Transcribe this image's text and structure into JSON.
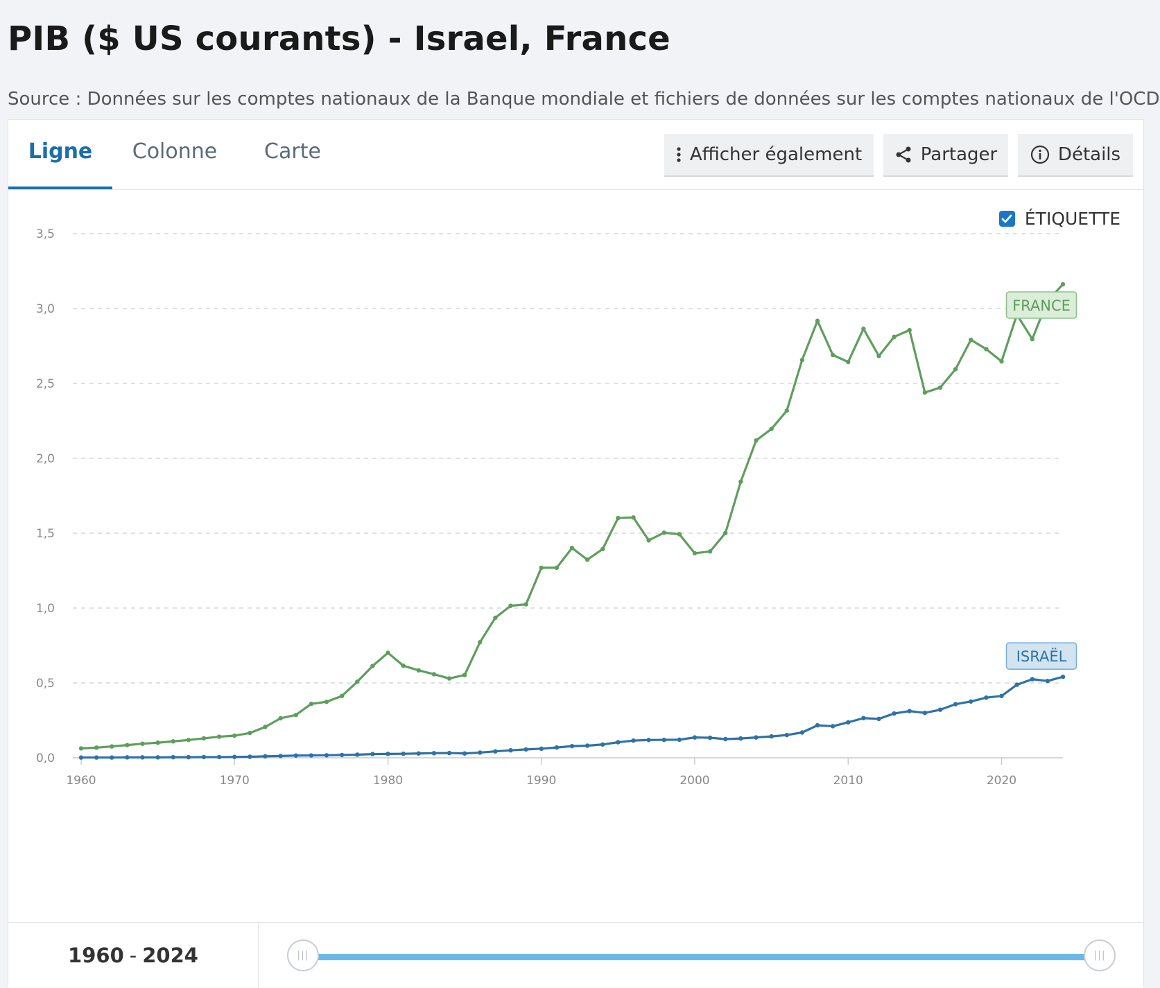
{
  "page": {
    "title": "PIB ($ US courants) - Israel, France",
    "source": "Source : Données sur les comptes nationaux de la Banque mondiale et fichiers de données sur les comptes nationaux de l'OCDE."
  },
  "tabs": [
    {
      "label": "Ligne",
      "active": true
    },
    {
      "label": "Colonne",
      "active": false
    },
    {
      "label": "Carte",
      "active": false
    }
  ],
  "toolbar": {
    "show_also_label": "Afficher également",
    "share_label": "Partager",
    "details_label": "Détails"
  },
  "legend_toggle": {
    "label": "ÉTIQUETTE",
    "checked": true
  },
  "range": {
    "start": "1960",
    "separator": "-",
    "end": "2024"
  },
  "colors": {
    "france": "#5e9e5c",
    "israel": "#2e72a6",
    "accent": "#1b6fa8",
    "slider": "#69b8e8"
  },
  "chart_data": {
    "type": "line",
    "title": "PIB ($ US courants) - Israel, France",
    "xlabel": "",
    "ylabel": "",
    "xlim": [
      1960,
      2024
    ],
    "ylim": [
      0,
      3.5
    ],
    "x_ticks": [
      "1960",
      "1970",
      "1980",
      "1990",
      "2000",
      "2010",
      "2020"
    ],
    "y_ticks": [
      "0,0",
      "0,5",
      "1,0",
      "1,5",
      "2,0",
      "2,5",
      "3,0",
      "3,5"
    ],
    "grid": true,
    "x": [
      1960,
      1961,
      1962,
      1963,
      1964,
      1965,
      1966,
      1967,
      1968,
      1969,
      1970,
      1971,
      1972,
      1973,
      1974,
      1975,
      1976,
      1977,
      1978,
      1979,
      1980,
      1981,
      1982,
      1983,
      1984,
      1985,
      1986,
      1987,
      1988,
      1989,
      1990,
      1991,
      1992,
      1993,
      1994,
      1995,
      1996,
      1997,
      1998,
      1999,
      2000,
      2001,
      2002,
      2003,
      2004,
      2005,
      2006,
      2007,
      2008,
      2009,
      2010,
      2011,
      2012,
      2013,
      2014,
      2015,
      2016,
      2017,
      2018,
      2019,
      2020,
      2021,
      2022,
      2023,
      2024
    ],
    "series": [
      {
        "name": "France",
        "label": "FRANCE",
        "values": [
          0.063,
          0.068,
          0.076,
          0.085,
          0.094,
          0.101,
          0.11,
          0.119,
          0.13,
          0.141,
          0.148,
          0.166,
          0.206,
          0.264,
          0.286,
          0.36,
          0.374,
          0.413,
          0.508,
          0.613,
          0.701,
          0.615,
          0.584,
          0.558,
          0.53,
          0.553,
          0.772,
          0.935,
          1.015,
          1.025,
          1.269,
          1.269,
          1.401,
          1.323,
          1.394,
          1.601,
          1.605,
          1.452,
          1.503,
          1.493,
          1.366,
          1.378,
          1.501,
          1.844,
          2.119,
          2.196,
          2.318,
          2.657,
          2.918,
          2.69,
          2.643,
          2.865,
          2.683,
          2.811,
          2.856,
          2.439,
          2.472,
          2.595,
          2.791,
          2.729,
          2.647,
          2.959,
          2.796,
          3.052,
          3.162
        ]
      },
      {
        "name": "Israël",
        "label": "ISRAËL",
        "values": [
          0.002,
          0.002,
          0.002,
          0.003,
          0.003,
          0.003,
          0.004,
          0.004,
          0.005,
          0.005,
          0.006,
          0.007,
          0.01,
          0.012,
          0.015,
          0.016,
          0.017,
          0.019,
          0.021,
          0.025,
          0.026,
          0.027,
          0.029,
          0.031,
          0.032,
          0.029,
          0.035,
          0.043,
          0.05,
          0.056,
          0.061,
          0.069,
          0.078,
          0.081,
          0.089,
          0.104,
          0.115,
          0.119,
          0.12,
          0.121,
          0.136,
          0.134,
          0.125,
          0.129,
          0.136,
          0.143,
          0.152,
          0.169,
          0.217,
          0.211,
          0.237,
          0.265,
          0.26,
          0.296,
          0.312,
          0.3,
          0.321,
          0.358,
          0.376,
          0.402,
          0.413,
          0.488,
          0.525,
          0.513,
          0.541
        ]
      }
    ]
  }
}
